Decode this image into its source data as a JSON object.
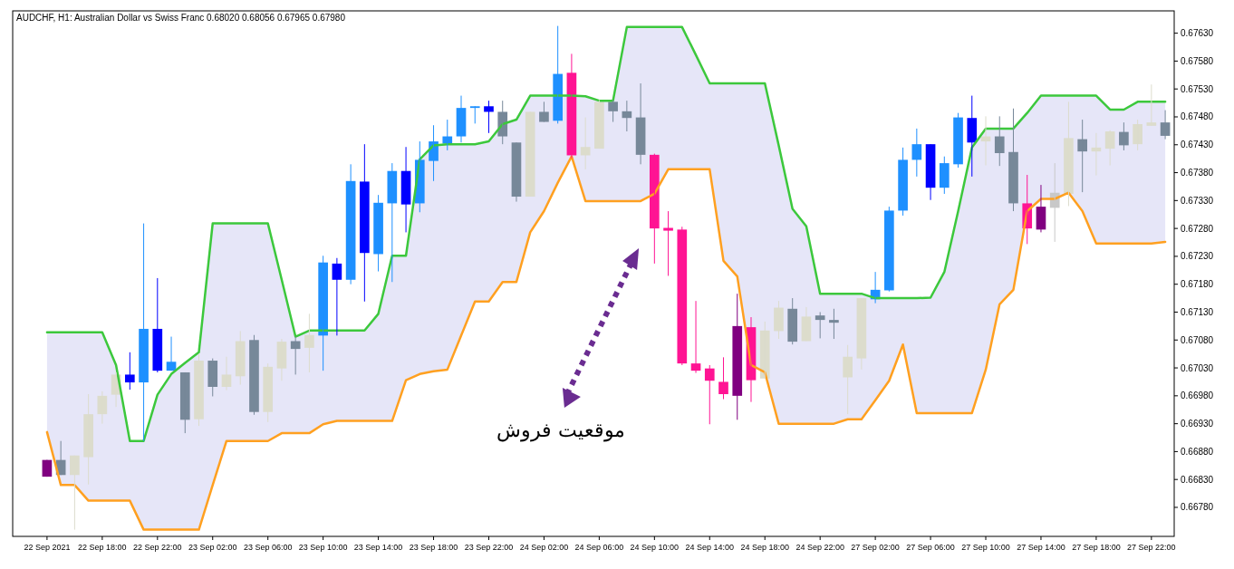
{
  "chart_data": {
    "type": "candlestick",
    "title": "AUDCHF, H1:  Australian Dollar vs Swiss Franc  0.68020 0.68056 0.67965 0.67980",
    "annotations": [
      "موقعیت فروش"
    ],
    "categories": [
      "22 Sep 2021",
      null,
      null,
      null,
      "22 Sep 18:00",
      null,
      null,
      null,
      "22 Sep 22:00",
      null,
      null,
      null,
      "23 Sep 02:00",
      null,
      null,
      null,
      "23 Sep 06:00",
      null,
      null,
      null,
      "23 Sep 10:00",
      null,
      null,
      null,
      "23 Sep 14:00",
      null,
      null,
      null,
      "23 Sep 18:00",
      null,
      null,
      null,
      "23 Sep 22:00",
      null,
      null,
      null,
      "24 Sep 02:00",
      null,
      null,
      null,
      "24 Sep 06:00",
      null,
      null,
      null,
      "24 Sep 10:00",
      null,
      null,
      null,
      "24 Sep 14:00",
      null,
      null,
      null,
      "24 Sep 18:00",
      null,
      null,
      null,
      "24 Sep 22:00",
      null,
      null,
      null,
      "27 Sep 02:00",
      null,
      null,
      null,
      "27 Sep 06:00",
      null,
      null,
      null,
      "27 Sep 10:00",
      null,
      null,
      null,
      "27 Sep 14:00",
      null,
      null,
      null,
      "27 Sep 18:00",
      null,
      null,
      null,
      "27 Sep 22:00",
      null
    ],
    "ohlc": [
      [
        0.66835,
        0.66865,
        0.66835,
        0.66865
      ],
      [
        0.66865,
        0.66899,
        0.66838,
        0.66838
      ],
      [
        0.66838,
        0.66873,
        0.6674,
        0.66873
      ],
      [
        0.6687,
        0.66983,
        0.66821,
        0.66947
      ],
      [
        0.66947,
        0.66988,
        0.6693,
        0.6698
      ],
      [
        0.66982,
        0.67022,
        0.6696,
        0.67018
      ],
      [
        0.67018,
        0.67058,
        0.66991,
        0.67004
      ],
      [
        0.67004,
        0.67289,
        0.66899,
        0.671
      ],
      [
        0.671,
        0.67191,
        0.67022,
        0.67025
      ],
      [
        0.67025,
        0.67086,
        0.67025,
        0.67041
      ],
      [
        0.67022,
        0.67022,
        0.66913,
        0.66937
      ],
      [
        0.66938,
        0.67055,
        0.66926,
        0.67043
      ],
      [
        0.67043,
        0.67047,
        0.66979,
        0.66996
      ],
      [
        0.66996,
        0.6705,
        0.6699,
        0.67018
      ],
      [
        0.67015,
        0.67096,
        0.67,
        0.67078
      ],
      [
        0.6708,
        0.67089,
        0.66946,
        0.66951
      ],
      [
        0.66951,
        0.67038,
        0.66933,
        0.67032
      ],
      [
        0.67029,
        0.67082,
        0.67007,
        0.67077
      ],
      [
        0.67078,
        0.67086,
        0.67018,
        0.67064
      ],
      [
        0.67066,
        0.67127,
        0.67022,
        0.67089
      ],
      [
        0.67088,
        0.67231,
        0.67025,
        0.67219
      ],
      [
        0.67217,
        0.67227,
        0.67088,
        0.67188
      ],
      [
        0.67188,
        0.67395,
        0.6718,
        0.67365
      ],
      [
        0.67364,
        0.67431,
        0.67149,
        0.67236
      ],
      [
        0.67234,
        0.6734,
        0.67203,
        0.67326
      ],
      [
        0.67325,
        0.67397,
        0.67184,
        0.67383
      ],
      [
        0.67383,
        0.67426,
        0.67273,
        0.67323
      ],
      [
        0.67325,
        0.67436,
        0.67309,
        0.67403
      ],
      [
        0.67401,
        0.67465,
        0.67365,
        0.67436
      ],
      [
        0.67432,
        0.67475,
        0.6742,
        0.67445
      ],
      [
        0.67445,
        0.67518,
        0.67434,
        0.67496
      ],
      [
        0.67496,
        0.67499,
        0.67468,
        0.67499
      ],
      [
        0.67499,
        0.67509,
        0.67451,
        0.67489
      ],
      [
        0.67489,
        0.67509,
        0.67431,
        0.67445
      ],
      [
        0.67434,
        0.67434,
        0.67328,
        0.67337
      ],
      [
        0.67337,
        0.67489,
        0.67337,
        0.67489
      ],
      [
        0.67489,
        0.67507,
        0.67471,
        0.67471
      ],
      [
        0.67473,
        0.67643,
        0.67468,
        0.67557
      ],
      [
        0.67559,
        0.67593,
        0.67406,
        0.67411
      ],
      [
        0.67411,
        0.67479,
        0.67386,
        0.67426
      ],
      [
        0.67423,
        0.6751,
        0.67423,
        0.67507
      ],
      [
        0.67507,
        0.6751,
        0.67471,
        0.6749
      ],
      [
        0.6749,
        0.67509,
        0.67454,
        0.67478
      ],
      [
        0.67479,
        0.6754,
        0.67395,
        0.67412
      ],
      [
        0.67412,
        0.67414,
        0.67217,
        0.6728
      ],
      [
        0.67281,
        0.67311,
        0.67195,
        0.67276
      ],
      [
        0.67278,
        0.67283,
        0.67035,
        0.67038
      ],
      [
        0.67038,
        0.6715,
        0.67021,
        0.67025
      ],
      [
        0.67029,
        0.67035,
        0.66929,
        0.67007
      ],
      [
        0.67005,
        0.67049,
        0.66974,
        0.66983
      ],
      [
        0.6698,
        0.67163,
        0.66937,
        0.67105
      ],
      [
        0.67103,
        0.67121,
        0.66969,
        0.67008
      ],
      [
        0.67011,
        0.67113,
        0.67011,
        0.67097
      ],
      [
        0.67096,
        0.6715,
        0.67082,
        0.67138
      ],
      [
        0.67136,
        0.67155,
        0.67072,
        0.67077
      ],
      [
        0.67078,
        0.67139,
        0.67078,
        0.67122
      ],
      [
        0.67124,
        0.6713,
        0.67083,
        0.67116
      ],
      [
        0.67116,
        0.67136,
        0.67082,
        0.67111
      ],
      [
        0.67013,
        0.67071,
        0.66947,
        0.6705
      ],
      [
        0.67047,
        0.67155,
        0.67027,
        0.67155
      ],
      [
        0.67153,
        0.67202,
        0.67146,
        0.6717
      ],
      [
        0.67169,
        0.67319,
        0.67167,
        0.67312
      ],
      [
        0.67312,
        0.67425,
        0.67303,
        0.67403
      ],
      [
        0.67403,
        0.67459,
        0.67373,
        0.67431
      ],
      [
        0.67431,
        0.67431,
        0.67331,
        0.67353
      ],
      [
        0.67353,
        0.67409,
        0.67342,
        0.67397
      ],
      [
        0.67395,
        0.67487,
        0.67389,
        0.67479
      ],
      [
        0.67478,
        0.67518,
        0.67373,
        0.67434
      ],
      [
        0.67436,
        0.67481,
        0.67393,
        0.67445
      ],
      [
        0.67445,
        0.67481,
        0.67392,
        0.67415
      ],
      [
        0.67417,
        0.67495,
        0.67311,
        0.67325
      ],
      [
        0.67325,
        0.67376,
        0.67252,
        0.6728
      ],
      [
        0.67278,
        0.67358,
        0.67273,
        0.67319
      ],
      [
        0.67317,
        0.67397,
        0.67256,
        0.67344
      ],
      [
        0.67342,
        0.67507,
        0.6732,
        0.67442
      ],
      [
        0.6744,
        0.67475,
        0.67345,
        0.67418
      ],
      [
        0.67418,
        0.67451,
        0.67375,
        0.67425
      ],
      [
        0.67423,
        0.67456,
        0.67393,
        0.67454
      ],
      [
        0.67453,
        0.6747,
        0.6742,
        0.67429
      ],
      [
        0.67431,
        0.67475,
        0.6742,
        0.67467
      ],
      [
        0.67464,
        0.67538,
        0.67464,
        0.6747
      ],
      [
        0.6747,
        0.67492,
        0.6744,
        0.67446
      ]
    ],
    "colors": [
      "#800080",
      "#778899",
      "#dcdccc",
      "#dcdccc",
      "#dcdccc",
      "#dcdccc",
      "#0000ff",
      "#1e90ff",
      "#0000ff",
      "#1e90ff",
      "#778899",
      "#dcdccc",
      "#778899",
      "#dcdccc",
      "#dcdccc",
      "#778899",
      "#dcdccc",
      "#dcdccc",
      "#778899",
      "#dcdccc",
      "#1e90ff",
      "#0000ff",
      "#1e90ff",
      "#0000ff",
      "#1e90ff",
      "#1e90ff",
      "#0000ff",
      "#1e90ff",
      "#1e90ff",
      "#1e90ff",
      "#1e90ff",
      "#1e90ff",
      "#0000ff",
      "#778899",
      "#778899",
      "#dcdccc",
      "#778899",
      "#1e90ff",
      "#ff1493",
      "#dcdccc",
      "#dcdccc",
      "#778899",
      "#778899",
      "#778899",
      "#ff1493",
      "#ff1493",
      "#ff1493",
      "#ff1493",
      "#ff1493",
      "#ff1493",
      "#800080",
      "#ff1493",
      "#dcdccc",
      "#dcdccc",
      "#778899",
      "#dcdccc",
      "#778899",
      "#778899",
      "#dcdccc",
      "#dcdccc",
      "#1e90ff",
      "#1e90ff",
      "#1e90ff",
      "#1e90ff",
      "#0000ff",
      "#1e90ff",
      "#1e90ff",
      "#0000ff",
      "#dcdccc",
      "#778899",
      "#778899",
      "#ff1493",
      "#800080",
      "#c8c8c8",
      "#dcdccc",
      "#778899",
      "#dcdccc",
      "#dcdccc",
      "#778899",
      "#dcdccc",
      "#dcdccc",
      "#778899"
    ],
    "series": [
      {
        "type": "line",
        "color": "#3cc83c",
        "lower": [
          0.66915,
          0.6682,
          0.6682,
          0.66792,
          0.66792,
          0.66792,
          0.66792,
          0.6674,
          0.6674,
          0.6674,
          0.6674,
          0.6674,
          0.6682,
          0.66899,
          0.66899,
          0.66899,
          0.66899,
          0.66913,
          0.66913,
          0.66913,
          0.66929,
          0.66935,
          0.66935,
          0.66935,
          0.66935,
          0.66935,
          0.67008,
          0.67019,
          0.67024,
          0.67027,
          0.67088,
          0.67149,
          0.67149,
          0.67184,
          0.67184,
          0.67273,
          0.67311,
          0.67362,
          0.67409,
          0.67329,
          0.67329,
          0.67329,
          0.67329,
          0.67329,
          0.67342,
          0.67386,
          0.67386,
          0.67386,
          0.67386,
          0.67222,
          0.67194,
          0.67035,
          0.67022,
          0.6693,
          0.6693,
          0.6693,
          0.6693,
          0.6693,
          0.66938,
          0.66938,
          0.66972,
          0.67007,
          0.67072,
          0.66949,
          0.66949,
          0.66949,
          0.66949,
          0.66949,
          0.67027,
          0.67144,
          0.6717,
          0.67311,
          0.67333,
          0.67333,
          0.67344,
          0.67311,
          0.67253,
          0.67253,
          0.67253,
          0.67253,
          0.67253,
          0.67256
        ],
        "upper": [
          0.67094,
          0.67094,
          0.67094,
          0.67094,
          0.67094,
          0.67035,
          0.66899,
          0.66899,
          0.66982,
          0.67019,
          0.67039,
          0.67058,
          0.67289,
          0.67289,
          0.67289,
          0.67289,
          0.67289,
          0.67188,
          0.67086,
          0.67097,
          0.67097,
          0.67097,
          0.67097,
          0.67097,
          0.67127,
          0.67231,
          0.67231,
          0.67404,
          0.67429,
          0.67431,
          0.67431,
          0.67431,
          0.67436,
          0.67467,
          0.67475,
          0.67518,
          0.67518,
          0.67518,
          0.67518,
          0.67517,
          0.67509,
          0.67509,
          0.67641,
          0.67641,
          0.67641,
          0.67641,
          0.67641,
          0.67591,
          0.6754,
          0.6754,
          0.6754,
          0.6754,
          0.6754,
          0.67429,
          0.67315,
          0.67284,
          0.67163,
          0.67163,
          0.67163,
          0.67163,
          0.67155,
          0.67155,
          0.67155,
          0.67155,
          0.67156,
          0.67202,
          0.67311,
          0.67425,
          0.67459,
          0.67459,
          0.67459,
          0.67487,
          0.67518,
          0.67518,
          0.67518,
          0.67518,
          0.67518,
          0.67493,
          0.67493,
          0.67507,
          0.67507,
          0.67507
        ],
        "values": [
          0.67094,
          0.67094,
          0.67094,
          0.67094,
          0.67094,
          0.67035,
          0.66899,
          0.66899,
          0.66982,
          0.67019,
          0.67039,
          0.67058,
          0.67289,
          0.67289,
          0.67289,
          0.67289,
          0.67289,
          0.67188,
          0.67086,
          0.67097,
          0.67097,
          0.67097,
          0.67097,
          0.67097,
          0.67127,
          0.67231,
          0.67231,
          0.67404,
          0.67429,
          0.67431,
          0.67431,
          0.67431,
          0.67436,
          0.67467,
          0.67475,
          0.67518,
          0.67518,
          0.67518,
          0.67518,
          0.67517,
          0.67509,
          0.67509,
          0.67641,
          0.67641,
          0.67641,
          0.67641,
          0.67641,
          0.67591,
          0.6754,
          0.6754,
          0.6754,
          0.6754,
          0.6754,
          0.67429,
          0.67315,
          0.67284,
          0.67163,
          0.67163,
          0.67163,
          0.67163,
          0.67155,
          0.67155,
          0.67155,
          0.67155,
          0.67156,
          0.67202,
          0.67311,
          0.67425,
          0.67459,
          0.67459,
          0.67459,
          0.67487,
          0.67518,
          0.67518,
          0.67518,
          0.67518,
          0.67518,
          0.67493,
          0.67493,
          0.67507,
          0.67507,
          0.67507
        ]
      },
      {
        "type": "line",
        "color": "#ffa020",
        "values": [
          0.66915,
          0.6682,
          0.6682,
          0.66792,
          0.66792,
          0.66792,
          0.66792,
          0.6674,
          0.6674,
          0.6674,
          0.6674,
          0.6674,
          0.6682,
          0.66899,
          0.66899,
          0.66899,
          0.66899,
          0.66913,
          0.66913,
          0.66913,
          0.66929,
          0.66935,
          0.66935,
          0.66935,
          0.66935,
          0.66935,
          0.67008,
          0.67019,
          0.67024,
          0.67027,
          0.67088,
          0.67149,
          0.67149,
          0.67184,
          0.67184,
          0.67273,
          0.67311,
          0.67362,
          0.67409,
          0.67329,
          0.67329,
          0.67329,
          0.67329,
          0.67329,
          0.67342,
          0.67386,
          0.67386,
          0.67386,
          0.67386,
          0.67222,
          0.67194,
          0.67035,
          0.67022,
          0.6693,
          0.6693,
          0.6693,
          0.6693,
          0.6693,
          0.66938,
          0.66938,
          0.66972,
          0.67007,
          0.67072,
          0.66949,
          0.66949,
          0.66949,
          0.66949,
          0.66949,
          0.67027,
          0.67144,
          0.6717,
          0.67311,
          0.67333,
          0.67333,
          0.67344,
          0.67311,
          0.67253,
          0.67253,
          0.67253,
          0.67253,
          0.67253,
          0.67256
        ]
      }
    ],
    "ylim": [
      0.66728,
      0.6767
    ],
    "yticks": [
      {
        "value": 0.6763,
        "label": "0.67630"
      },
      {
        "value": 0.6758,
        "label": "0.67580"
      },
      {
        "value": 0.6753,
        "label": "0.67530"
      },
      {
        "value": 0.6748,
        "label": "0.67480"
      },
      {
        "value": 0.6743,
        "label": "0.67430"
      },
      {
        "value": 0.6738,
        "label": "0.67380"
      },
      {
        "value": 0.6733,
        "label": "0.67330"
      },
      {
        "value": 0.6728,
        "label": "0.67280"
      },
      {
        "value": 0.6723,
        "label": "0.67230"
      },
      {
        "value": 0.6718,
        "label": "0.67180"
      },
      {
        "value": 0.6713,
        "label": "0.67130"
      },
      {
        "value": 0.6708,
        "label": "0.67080"
      },
      {
        "value": 0.6703,
        "label": "0.67030"
      },
      {
        "value": 0.6698,
        "label": "0.66980"
      },
      {
        "value": 0.6693,
        "label": "0.66930"
      },
      {
        "value": 0.6688,
        "label": "0.66880"
      },
      {
        "value": 0.6683,
        "label": "0.66830"
      },
      {
        "value": 0.6678,
        "label": "0.66780"
      }
    ]
  }
}
